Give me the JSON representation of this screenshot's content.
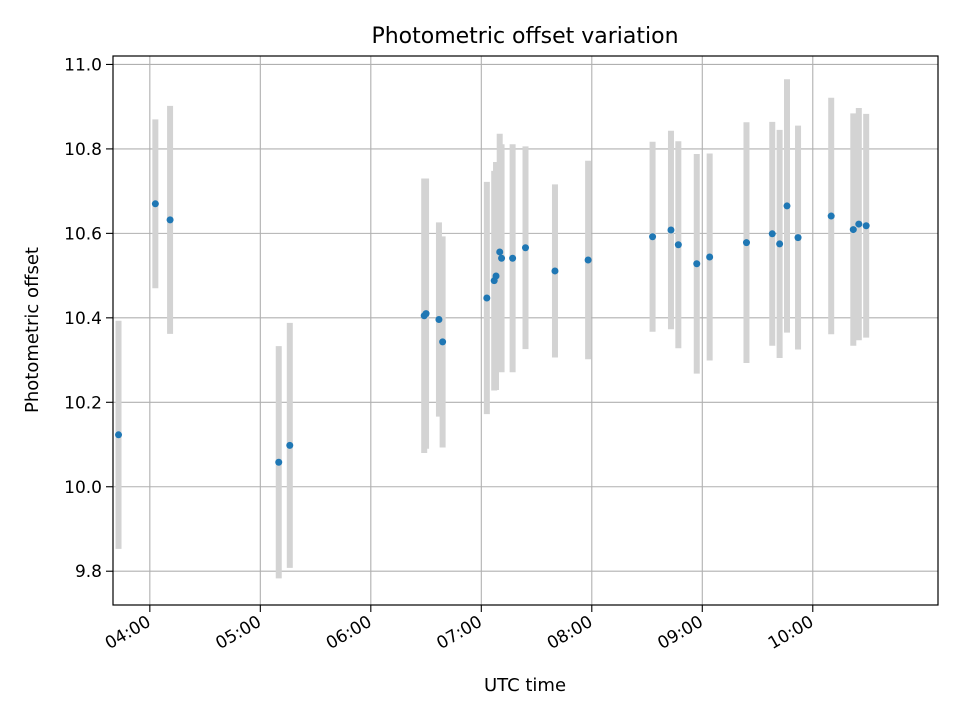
{
  "chart_data": {
    "type": "scatter",
    "title": "Photometric offset variation",
    "xlabel": "UTC time",
    "ylabel": "Photometric offset",
    "x_unit": "UTC time (HH:MM)",
    "xlim": [
      "03:40",
      "11:08"
    ],
    "ylim": [
      9.72,
      11.02
    ],
    "xticks": [
      "04:00",
      "05:00",
      "06:00",
      "07:00",
      "08:00",
      "09:00",
      "10:00"
    ],
    "yticks": [
      9.8,
      10.0,
      10.2,
      10.4,
      10.6,
      10.8,
      11.0
    ],
    "ytick_labels": [
      "9.8",
      "10.0",
      "10.2",
      "10.4",
      "10.6",
      "10.8",
      "11.0"
    ],
    "grid": true,
    "marker_color": "#1f77b4",
    "errorbar_color": "#d3d3d3",
    "points": [
      {
        "t": "03:43",
        "y": 10.123,
        "err": 0.27
      },
      {
        "t": "04:03",
        "y": 10.67,
        "err": 0.2
      },
      {
        "t": "04:11",
        "y": 10.632,
        "err": 0.27
      },
      {
        "t": "05:10",
        "y": 10.058,
        "err": 0.275
      },
      {
        "t": "05:16",
        "y": 10.098,
        "err": 0.29
      },
      {
        "t": "06:29",
        "y": 10.405,
        "err": 0.325
      },
      {
        "t": "06:30",
        "y": 10.41,
        "err": 0.32
      },
      {
        "t": "06:37",
        "y": 10.396,
        "err": 0.23
      },
      {
        "t": "06:39",
        "y": 10.343,
        "err": 0.25
      },
      {
        "t": "07:03",
        "y": 10.447,
        "err": 0.275
      },
      {
        "t": "07:07",
        "y": 10.488,
        "err": 0.26
      },
      {
        "t": "07:08",
        "y": 10.499,
        "err": 0.27
      },
      {
        "t": "07:10",
        "y": 10.556,
        "err": 0.28
      },
      {
        "t": "07:11",
        "y": 10.541,
        "err": 0.27
      },
      {
        "t": "07:17",
        "y": 10.541,
        "err": 0.27
      },
      {
        "t": "07:24",
        "y": 10.566,
        "err": 0.24
      },
      {
        "t": "07:40",
        "y": 10.511,
        "err": 0.205
      },
      {
        "t": "07:58",
        "y": 10.537,
        "err": 0.235
      },
      {
        "t": "08:33",
        "y": 10.592,
        "err": 0.225
      },
      {
        "t": "08:43",
        "y": 10.608,
        "err": 0.235
      },
      {
        "t": "08:47",
        "y": 10.573,
        "err": 0.245
      },
      {
        "t": "08:57",
        "y": 10.528,
        "err": 0.26
      },
      {
        "t": "09:04",
        "y": 10.544,
        "err": 0.245
      },
      {
        "t": "09:24",
        "y": 10.578,
        "err": 0.285
      },
      {
        "t": "09:38",
        "y": 10.599,
        "err": 0.265
      },
      {
        "t": "09:42",
        "y": 10.575,
        "err": 0.27
      },
      {
        "t": "09:46",
        "y": 10.665,
        "err": 0.3
      },
      {
        "t": "09:52",
        "y": 10.59,
        "err": 0.265
      },
      {
        "t": "10:10",
        "y": 10.641,
        "err": 0.28
      },
      {
        "t": "10:22",
        "y": 10.609,
        "err": 0.275
      },
      {
        "t": "10:25",
        "y": 10.622,
        "err": 0.275
      },
      {
        "t": "10:29",
        "y": 10.618,
        "err": 0.265
      }
    ]
  }
}
